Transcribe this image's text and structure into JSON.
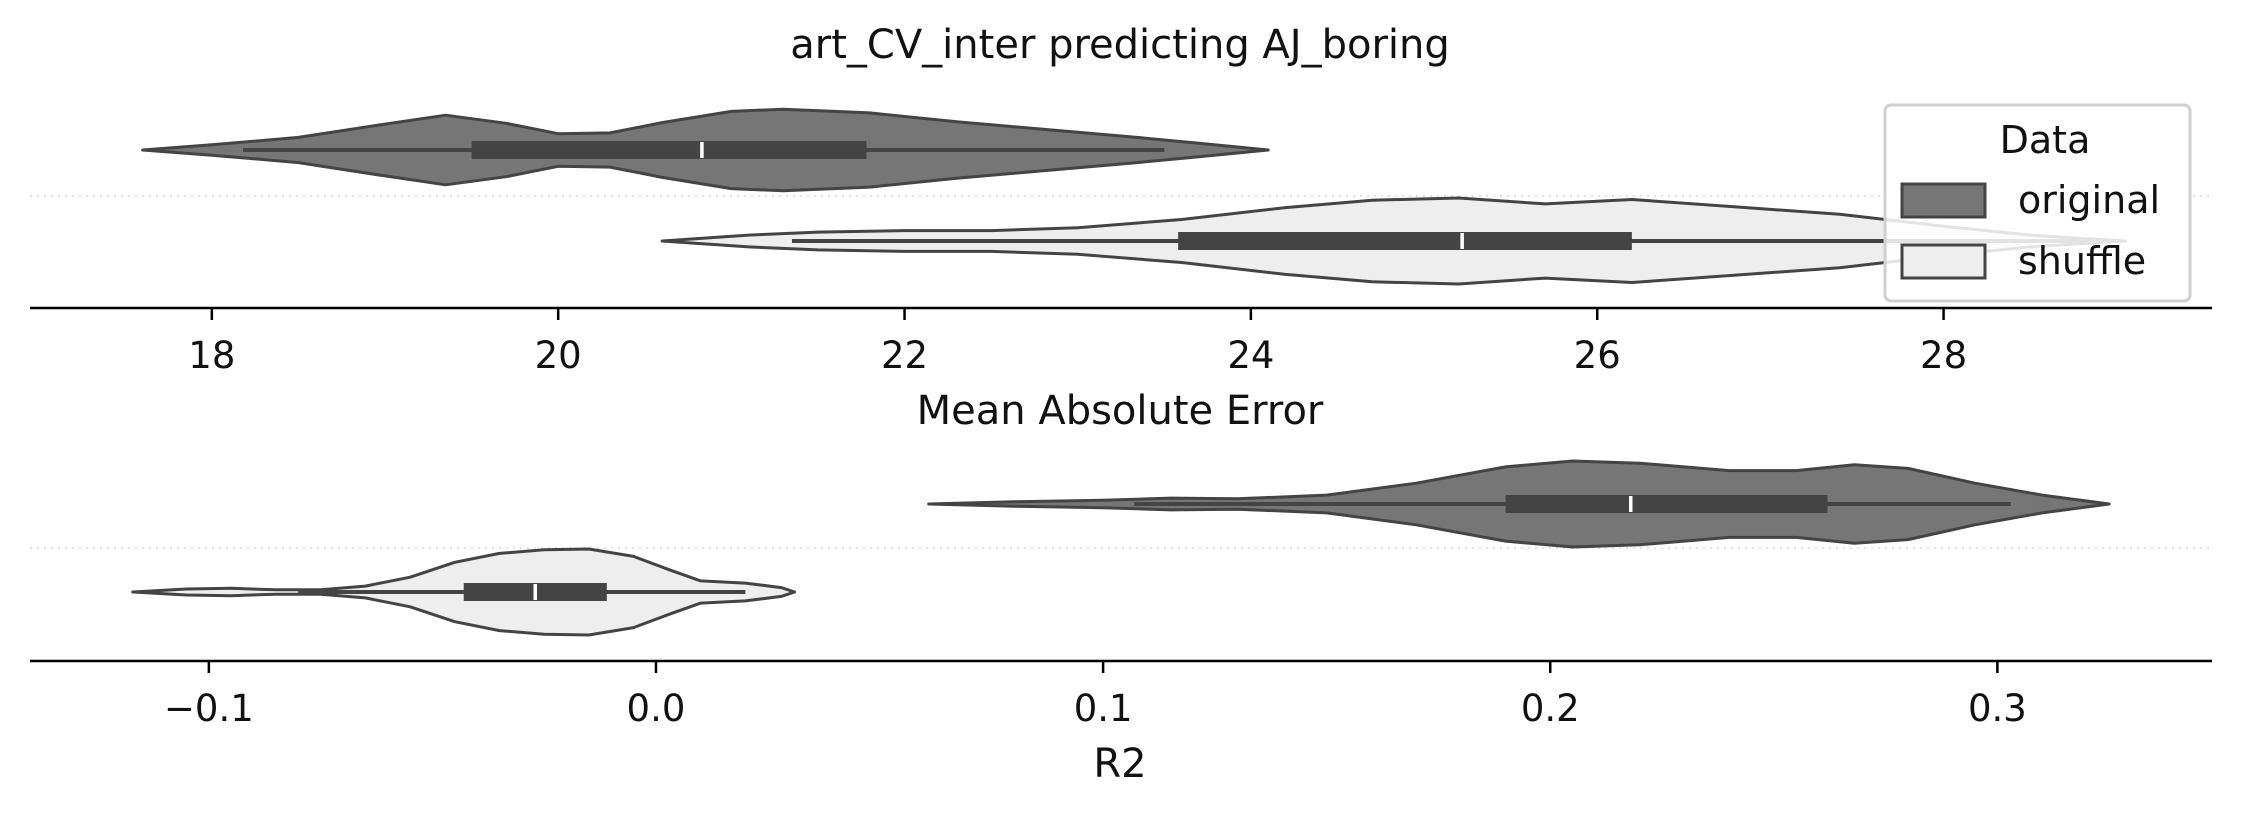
{
  "chart_data": [
    {
      "type": "violin",
      "title": "art_CV_inter predicting AJ_boring",
      "xlabel": "Mean Absolute Error",
      "xlim": [
        16.95,
        29.55
      ],
      "xticks": [
        18,
        20,
        22,
        24,
        26,
        28
      ],
      "tick_labels": [
        "18",
        "20",
        "22",
        "24",
        "26",
        "28"
      ],
      "legend": {
        "title": "Data",
        "placement": "top-right",
        "entries": [
          {
            "label": "original",
            "color": "#767676"
          },
          {
            "label": "shuffle",
            "color": "#eeeeee"
          }
        ]
      },
      "series": [
        {
          "name": "original",
          "color": "#767676",
          "row": 0,
          "whisker": [
            18.18,
            23.5
          ],
          "box": [
            19.5,
            21.78
          ],
          "median": 20.83,
          "density": [
            [
              17.6,
              0.0
            ],
            [
              18.0,
              0.07
            ],
            [
              18.5,
              0.17
            ],
            [
              19.0,
              0.35
            ],
            [
              19.35,
              0.47
            ],
            [
              19.7,
              0.36
            ],
            [
              20.0,
              0.22
            ],
            [
              20.3,
              0.23
            ],
            [
              20.6,
              0.37
            ],
            [
              21.0,
              0.52
            ],
            [
              21.3,
              0.55
            ],
            [
              21.8,
              0.5
            ],
            [
              22.3,
              0.38
            ],
            [
              22.8,
              0.28
            ],
            [
              23.3,
              0.18
            ],
            [
              23.7,
              0.09
            ],
            [
              24.1,
              0.0
            ]
          ]
        },
        {
          "name": "shuffle",
          "color": "#eeeeee",
          "row": 1,
          "whisker": [
            21.35,
            29.0
          ],
          "box": [
            23.58,
            26.2
          ],
          "median": 25.22,
          "density": [
            [
              20.6,
              0.0
            ],
            [
              21.1,
              0.08
            ],
            [
              21.5,
              0.12
            ],
            [
              22.0,
              0.14
            ],
            [
              22.5,
              0.14
            ],
            [
              23.0,
              0.18
            ],
            [
              23.6,
              0.29
            ],
            [
              24.2,
              0.45
            ],
            [
              24.7,
              0.55
            ],
            [
              25.2,
              0.58
            ],
            [
              25.7,
              0.5
            ],
            [
              26.2,
              0.56
            ],
            [
              26.8,
              0.46
            ],
            [
              27.4,
              0.36
            ],
            [
              28.0,
              0.2
            ],
            [
              28.5,
              0.08
            ],
            [
              28.9,
              0.02
            ],
            [
              29.05,
              0.0
            ]
          ]
        }
      ]
    },
    {
      "type": "violin",
      "xlabel": "R2",
      "xlim": [
        -0.14,
        0.348
      ],
      "xticks": [
        -0.1,
        0.0,
        0.1,
        0.2,
        0.3
      ],
      "tick_labels": [
        "−0.1",
        "0.0",
        "0.1",
        "0.2",
        "0.3"
      ],
      "series": [
        {
          "name": "original",
          "color": "#767676",
          "row": 0,
          "whisker": [
            0.107,
            0.303
          ],
          "box": [
            0.19,
            0.262
          ],
          "median": 0.218,
          "density": [
            [
              0.061,
              0.0
            ],
            [
              0.08,
              0.03
            ],
            [
              0.1,
              0.05
            ],
            [
              0.115,
              0.08
            ],
            [
              0.13,
              0.07
            ],
            [
              0.15,
              0.12
            ],
            [
              0.17,
              0.28
            ],
            [
              0.19,
              0.5
            ],
            [
              0.205,
              0.58
            ],
            [
              0.22,
              0.55
            ],
            [
              0.24,
              0.45
            ],
            [
              0.255,
              0.45
            ],
            [
              0.268,
              0.53
            ],
            [
              0.28,
              0.48
            ],
            [
              0.295,
              0.28
            ],
            [
              0.31,
              0.12
            ],
            [
              0.325,
              0.0
            ]
          ]
        },
        {
          "name": "shuffle",
          "color": "#eeeeee",
          "row": 1,
          "whisker": [
            -0.08,
            0.02
          ],
          "box": [
            -0.043,
            -0.011
          ],
          "median": -0.027,
          "density": [
            [
              -0.117,
              0.0
            ],
            [
              -0.105,
              0.04
            ],
            [
              -0.095,
              0.05
            ],
            [
              -0.085,
              0.03
            ],
            [
              -0.075,
              0.03
            ],
            [
              -0.065,
              0.08
            ],
            [
              -0.055,
              0.2
            ],
            [
              -0.045,
              0.4
            ],
            [
              -0.035,
              0.52
            ],
            [
              -0.025,
              0.57
            ],
            [
              -0.015,
              0.58
            ],
            [
              -0.005,
              0.48
            ],
            [
              0.003,
              0.3
            ],
            [
              0.01,
              0.15
            ],
            [
              0.02,
              0.12
            ],
            [
              0.028,
              0.06
            ],
            [
              0.031,
              0.0
            ]
          ]
        }
      ]
    }
  ]
}
